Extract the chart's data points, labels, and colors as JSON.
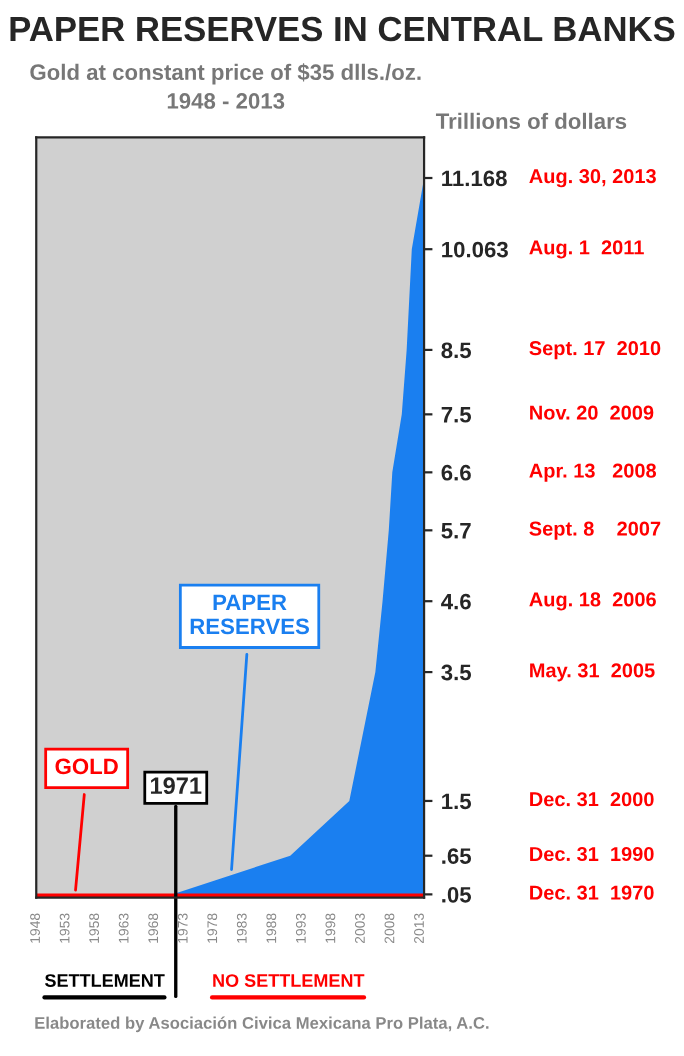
{
  "chart_data": {
    "type": "area",
    "title": "PAPER RESERVES IN CENTRAL BANKS",
    "subtitle": "Gold at constant price of $35 dlls./oz.\n1948 - 2013",
    "ylabel": "Trillions of dollars",
    "series": [
      {
        "name": "PAPER RESERVES",
        "color": "#1a7ff0",
        "x": [
          "1948",
          "1970-12-31",
          "1990-12-31",
          "2000-12-31",
          "2005-05-31",
          "2006-08-18",
          "2007-09-08",
          "2008-04-13",
          "2009-11-20",
          "2010-09-17",
          "2011-08-01",
          "2013-08-30"
        ],
        "values": [
          0.03,
          0.05,
          0.65,
          1.5,
          3.5,
          4.6,
          5.7,
          6.6,
          7.5,
          8.5,
          10.063,
          11.168
        ]
      },
      {
        "name": "GOLD",
        "color": "#ff0000",
        "type": "line",
        "x": [
          "1948",
          "2013-08-30"
        ],
        "values": [
          0.03,
          0.03
        ]
      }
    ],
    "xlim": [
      "1948",
      "2013-08-30"
    ],
    "xticks": [
      "1948",
      "1953",
      "1958",
      "1963",
      "1968",
      "1973",
      "1978",
      "1983",
      "1988",
      "1993",
      "1998",
      "2003",
      "2008",
      "2013"
    ],
    "ylim": [
      0,
      11.8
    ],
    "yticks": [
      {
        "value": 0.05,
        "label": ".05"
      },
      {
        "value": 0.65,
        "label": ".65"
      },
      1.5,
      3.5,
      4.6,
      5.7,
      6.6,
      7.5,
      8.5,
      10.063,
      11.168
    ],
    "ref_lines": [
      {
        "axis": "x",
        "value": "1971-08-15",
        "label": "1971",
        "color": "#000000"
      }
    ],
    "annotations": [
      "Dec. 31  1970",
      "Dec. 31  1990",
      "Dec. 31  2000",
      "May. 31  2005",
      "Aug. 18  2006",
      "Sept. 8    2007",
      "Apr. 13   2008",
      "Nov. 20  2009",
      "Sept. 17  2010",
      "Aug. 1  2011",
      "Aug. 30, 2013",
      "SETTLEMENT",
      "NO SETTLEMENT",
      "Elaborated by Asociación Civica Mexicana Pro Plata, A.C."
    ],
    "legend": false
  }
}
